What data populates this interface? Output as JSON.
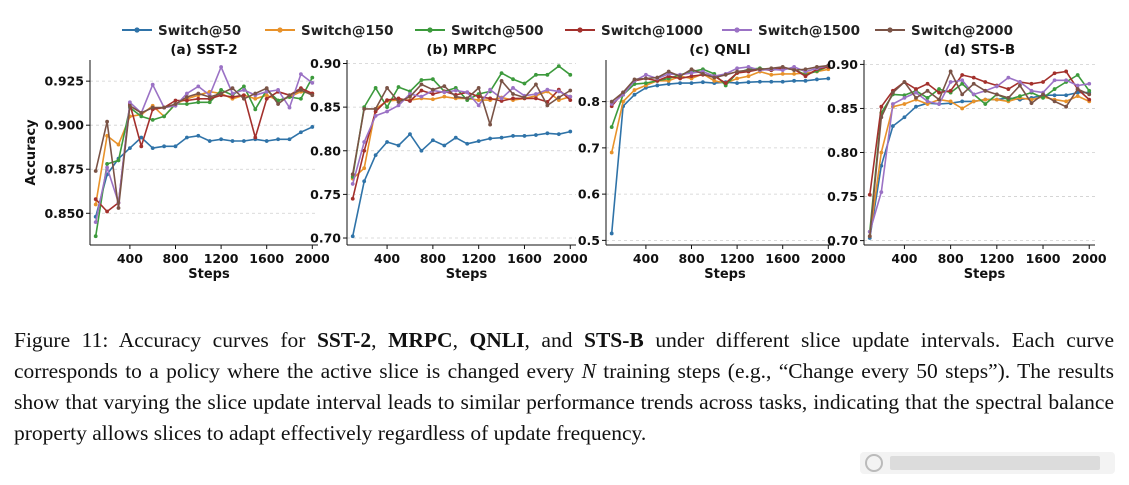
{
  "legend": [
    {
      "name": "Switch@50",
      "color": "#2f73a8"
    },
    {
      "name": "Switch@150",
      "color": "#e8922a"
    },
    {
      "name": "Switch@500",
      "color": "#3c9a3c"
    },
    {
      "name": "Switch@1000",
      "color": "#a3302c"
    },
    {
      "name": "Switch@1500",
      "color": "#9b72c5"
    },
    {
      "name": "Switch@2000",
      "color": "#7a5346"
    }
  ],
  "chart_data": [
    {
      "type": "line",
      "title": "(a) SST-2",
      "xlabel": "Steps",
      "ylabel": "Accuracy",
      "xlim": [
        50,
        2050
      ],
      "ylim": [
        0.832,
        0.937
      ],
      "xticks": [
        400,
        800,
        1200,
        1600,
        2000
      ],
      "yticks": [
        0.85,
        0.875,
        0.9,
        0.925
      ],
      "ytick_labels": [
        "0.850",
        "0.875",
        "0.900",
        "0.925"
      ],
      "x": [
        100,
        200,
        300,
        400,
        500,
        600,
        700,
        800,
        900,
        1000,
        1100,
        1200,
        1300,
        1400,
        1500,
        1600,
        1700,
        1800,
        1900,
        2000
      ],
      "series": [
        {
          "name": "Switch@50",
          "values": [
            0.848,
            0.872,
            0.881,
            0.887,
            0.893,
            0.887,
            0.888,
            0.888,
            0.893,
            0.894,
            0.891,
            0.892,
            0.891,
            0.891,
            0.892,
            0.891,
            0.892,
            0.892,
            0.896,
            0.899
          ]
        },
        {
          "name": "Switch@150",
          "values": [
            0.855,
            0.894,
            0.889,
            0.905,
            0.906,
            0.911,
            0.905,
            0.912,
            0.915,
            0.917,
            0.919,
            0.918,
            0.915,
            0.917,
            0.915,
            0.917,
            0.914,
            0.916,
            0.919,
            0.918
          ]
        },
        {
          "name": "Switch@500",
          "values": [
            0.837,
            0.878,
            0.88,
            0.91,
            0.905,
            0.903,
            0.905,
            0.912,
            0.912,
            0.913,
            0.913,
            0.92,
            0.917,
            0.922,
            0.909,
            0.92,
            0.914,
            0.916,
            0.915,
            0.927
          ]
        },
        {
          "name": "Switch@1000",
          "values": [
            0.858,
            0.851,
            0.856,
            0.912,
            0.888,
            0.909,
            0.91,
            0.914,
            0.914,
            0.915,
            0.915,
            0.917,
            0.916,
            0.917,
            0.893,
            0.915,
            0.919,
            0.917,
            0.921,
            0.918
          ]
        },
        {
          "name": "Switch@1500",
          "values": [
            0.845,
            0.876,
            0.856,
            0.913,
            0.907,
            0.923,
            0.91,
            0.911,
            0.918,
            0.922,
            0.917,
            0.933,
            0.918,
            0.92,
            0.917,
            0.919,
            0.92,
            0.91,
            0.929,
            0.924
          ]
        },
        {
          "name": "Switch@2000",
          "values": [
            0.874,
            0.902,
            0.853,
            0.911,
            0.907,
            0.91,
            0.91,
            0.912,
            0.916,
            0.918,
            0.916,
            0.918,
            0.921,
            0.915,
            0.918,
            0.921,
            0.912,
            0.917,
            0.92,
            0.917
          ]
        }
      ]
    },
    {
      "type": "line",
      "title": "(b) MRPC",
      "xlabel": "Steps",
      "ylabel": "",
      "xlim": [
        50,
        2050
      ],
      "ylim": [
        0.692,
        0.904
      ],
      "xticks": [
        400,
        800,
        1200,
        1600,
        2000
      ],
      "yticks": [
        0.7,
        0.75,
        0.8,
        0.85,
        0.9
      ],
      "ytick_labels": [
        "0.70",
        "0.75",
        "0.80",
        "0.85",
        "0.90"
      ],
      "x": [
        100,
        200,
        300,
        400,
        500,
        600,
        700,
        800,
        900,
        1000,
        1100,
        1200,
        1300,
        1400,
        1500,
        1600,
        1700,
        1800,
        1900,
        2000
      ],
      "series": [
        {
          "name": "Switch@50",
          "values": [
            0.702,
            0.765,
            0.795,
            0.81,
            0.806,
            0.819,
            0.8,
            0.812,
            0.806,
            0.815,
            0.808,
            0.811,
            0.814,
            0.815,
            0.817,
            0.817,
            0.818,
            0.82,
            0.819,
            0.822
          ]
        },
        {
          "name": "Switch@150",
          "values": [
            0.768,
            0.78,
            0.848,
            0.857,
            0.858,
            0.858,
            0.86,
            0.859,
            0.862,
            0.86,
            0.86,
            0.858,
            0.858,
            0.861,
            0.858,
            0.86,
            0.863,
            0.868,
            0.858,
            0.862
          ]
        },
        {
          "name": "Switch@500",
          "values": [
            0.77,
            0.85,
            0.872,
            0.85,
            0.873,
            0.868,
            0.881,
            0.882,
            0.868,
            0.872,
            0.858,
            0.865,
            0.868,
            0.889,
            0.882,
            0.877,
            0.887,
            0.887,
            0.897,
            0.887
          ]
        },
        {
          "name": "Switch@1000",
          "values": [
            0.745,
            0.8,
            0.845,
            0.858,
            0.86,
            0.857,
            0.869,
            0.865,
            0.868,
            0.864,
            0.867,
            0.862,
            0.86,
            0.857,
            0.86,
            0.86,
            0.86,
            0.856,
            0.87,
            0.858
          ]
        },
        {
          "name": "Switch@1500",
          "values": [
            0.762,
            0.81,
            0.84,
            0.845,
            0.852,
            0.865,
            0.862,
            0.869,
            0.867,
            0.869,
            0.867,
            0.852,
            0.87,
            0.86,
            0.872,
            0.863,
            0.865,
            0.87,
            0.868,
            0.862
          ]
        },
        {
          "name": "Switch@2000",
          "values": [
            0.773,
            0.848,
            0.848,
            0.872,
            0.856,
            0.862,
            0.876,
            0.87,
            0.874,
            0.862,
            0.86,
            0.872,
            0.83,
            0.88,
            0.865,
            0.861,
            0.876,
            0.852,
            0.861,
            0.869
          ]
        }
      ]
    },
    {
      "type": "line",
      "title": "(c) QNLI",
      "xlabel": "Steps",
      "ylabel": "",
      "xlim": [
        50,
        2050
      ],
      "ylim": [
        0.49,
        0.89
      ],
      "xticks": [
        400,
        800,
        1200,
        1600,
        2000
      ],
      "yticks": [
        0.5,
        0.6,
        0.7,
        0.8
      ],
      "ytick_labels": [
        "0.5",
        "0.6",
        "0.7",
        "0.8"
      ],
      "x": [
        100,
        200,
        300,
        400,
        500,
        600,
        700,
        800,
        900,
        1000,
        1100,
        1200,
        1300,
        1400,
        1500,
        1600,
        1700,
        1800,
        1900,
        2000
      ],
      "series": [
        {
          "name": "Switch@50",
          "values": [
            0.515,
            0.79,
            0.815,
            0.83,
            0.835,
            0.838,
            0.84,
            0.84,
            0.842,
            0.84,
            0.842,
            0.84,
            0.842,
            0.843,
            0.843,
            0.843,
            0.845,
            0.845,
            0.848,
            0.85
          ]
        },
        {
          "name": "Switch@150",
          "values": [
            0.69,
            0.8,
            0.825,
            0.835,
            0.845,
            0.845,
            0.855,
            0.85,
            0.86,
            0.845,
            0.84,
            0.85,
            0.855,
            0.865,
            0.858,
            0.86,
            0.86,
            0.862,
            0.865,
            0.87
          ]
        },
        {
          "name": "Switch@500",
          "values": [
            0.745,
            0.815,
            0.838,
            0.84,
            0.845,
            0.85,
            0.858,
            0.865,
            0.87,
            0.86,
            0.835,
            0.862,
            0.87,
            0.872,
            0.868,
            0.872,
            0.87,
            0.858,
            0.866,
            0.876
          ]
        },
        {
          "name": "Switch@1000",
          "values": [
            0.79,
            0.82,
            0.845,
            0.85,
            0.845,
            0.855,
            0.85,
            0.855,
            0.858,
            0.855,
            0.84,
            0.862,
            0.865,
            0.87,
            0.868,
            0.872,
            0.87,
            0.855,
            0.87,
            0.875
          ]
        },
        {
          "name": "Switch@1500",
          "values": [
            0.795,
            0.815,
            0.845,
            0.858,
            0.85,
            0.86,
            0.858,
            0.862,
            0.865,
            0.855,
            0.86,
            0.872,
            0.875,
            0.868,
            0.87,
            0.868,
            0.875,
            0.865,
            0.872,
            0.878
          ]
        },
        {
          "name": "Switch@2000",
          "values": [
            0.8,
            0.82,
            0.848,
            0.85,
            0.852,
            0.865,
            0.855,
            0.87,
            0.86,
            0.852,
            0.858,
            0.865,
            0.868,
            0.87,
            0.872,
            0.875,
            0.868,
            0.87,
            0.875,
            0.878
          ]
        }
      ]
    },
    {
      "type": "line",
      "title": "(d) STS-B",
      "xlabel": "Steps",
      "ylabel": "",
      "xlim": [
        50,
        2050
      ],
      "ylim": [
        0.695,
        0.905
      ],
      "xticks": [
        400,
        800,
        1200,
        1600,
        2000
      ],
      "yticks": [
        0.7,
        0.75,
        0.8,
        0.85,
        0.9
      ],
      "ytick_labels": [
        "0.70",
        "0.75",
        "0.80",
        "0.85",
        "0.90"
      ],
      "x": [
        100,
        200,
        300,
        400,
        500,
        600,
        700,
        800,
        900,
        1000,
        1100,
        1200,
        1300,
        1400,
        1500,
        1600,
        1700,
        1800,
        1900,
        2000
      ],
      "series": [
        {
          "name": "Switch@50",
          "values": [
            0.703,
            0.785,
            0.83,
            0.84,
            0.852,
            0.856,
            0.855,
            0.856,
            0.858,
            0.858,
            0.86,
            0.86,
            0.862,
            0.86,
            0.862,
            0.865,
            0.865,
            0.865,
            0.868,
            0.868
          ]
        },
        {
          "name": "Switch@150",
          "values": [
            0.705,
            0.8,
            0.852,
            0.855,
            0.86,
            0.855,
            0.86,
            0.858,
            0.85,
            0.858,
            0.86,
            0.86,
            0.858,
            0.862,
            0.86,
            0.863,
            0.86,
            0.858,
            0.864,
            0.858
          ]
        },
        {
          "name": "Switch@500",
          "values": [
            0.71,
            0.845,
            0.866,
            0.865,
            0.87,
            0.862,
            0.872,
            0.868,
            0.878,
            0.866,
            0.855,
            0.866,
            0.86,
            0.864,
            0.868,
            0.862,
            0.872,
            0.88,
            0.888,
            0.87
          ]
        },
        {
          "name": "Switch@1000",
          "values": [
            0.752,
            0.852,
            0.87,
            0.88,
            0.872,
            0.878,
            0.868,
            0.87,
            0.888,
            0.885,
            0.88,
            0.876,
            0.872,
            0.88,
            0.878,
            0.88,
            0.89,
            0.892,
            0.872,
            0.86
          ]
        },
        {
          "name": "Switch@1500",
          "values": [
            0.71,
            0.755,
            0.855,
            0.862,
            0.868,
            0.858,
            0.855,
            0.88,
            0.882,
            0.866,
            0.87,
            0.875,
            0.885,
            0.88,
            0.87,
            0.868,
            0.882,
            0.882,
            0.876,
            0.878
          ]
        },
        {
          "name": "Switch@2000",
          "values": [
            0.705,
            0.84,
            0.868,
            0.88,
            0.862,
            0.87,
            0.86,
            0.892,
            0.866,
            0.878,
            0.87,
            0.866,
            0.862,
            0.876,
            0.856,
            0.866,
            0.858,
            0.852,
            0.872,
            0.866
          ]
        }
      ]
    }
  ],
  "caption": {
    "figure_label": "Figure 11:",
    "part1": " Accuracy curves for ",
    "bold_sst2": "SST-2",
    "sep1": ", ",
    "bold_mrpc": "MRPC",
    "sep2": ", ",
    "bold_qnli": "QNLI",
    "sep3": ", and ",
    "bold_stsb": "STS-B",
    "part2": " under different slice update intervals. Each curve corresponds to a policy where the active slice is changed every ",
    "italic_n": "N",
    "part3": " training steps (e.g., “Change every 50 steps”). The results show that varying the slice update interval leads to similar performance trends across tasks, indicating that the spectral balance property allows slices to adapt effectively regardless of update frequency."
  }
}
